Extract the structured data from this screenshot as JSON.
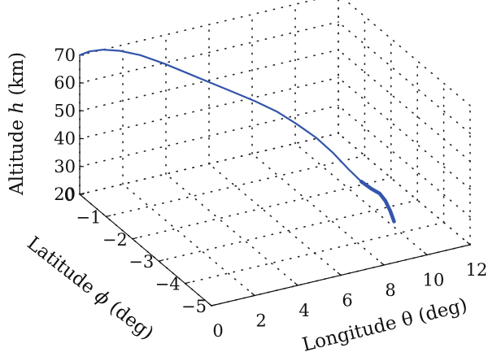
{
  "chart_data": {
    "type": "line",
    "projection": "3d",
    "grid": true,
    "axes": {
      "x": {
        "label": "Longitude θ (deg)",
        "range": [
          0,
          12
        ],
        "ticks": [
          0,
          2,
          4,
          6,
          8,
          10,
          12
        ]
      },
      "y": {
        "label": "Latitude ϕ (deg)",
        "range": [
          -5,
          0
        ],
        "ticks": [
          0,
          -1,
          -2,
          -3,
          -4,
          -5
        ]
      },
      "z": {
        "label": "Altitude h (km)",
        "range": [
          20,
          70
        ],
        "ticks": [
          20,
          30,
          40,
          50,
          60,
          70
        ]
      }
    },
    "axis_label_parts": {
      "z": [
        "Altitude ",
        "h",
        " (km)"
      ],
      "y": [
        "Latitude ",
        "ϕ",
        " (deg)"
      ],
      "x": [
        "Longitude ",
        "θ",
        " (deg)"
      ]
    },
    "color": "#3355aa",
    "series": [
      {
        "points": [
          [
            0.0,
            0.0,
            70.0
          ],
          [
            0.4,
            -0.05,
            71.0
          ],
          [
            0.9,
            -0.15,
            71.5
          ],
          [
            1.5,
            -0.3,
            71.2
          ],
          [
            2.2,
            -0.5,
            70.0
          ],
          [
            3.0,
            -0.75,
            67.5
          ],
          [
            3.8,
            -1.0,
            64.5
          ],
          [
            4.6,
            -1.25,
            61.5
          ],
          [
            5.3,
            -1.5,
            59.0
          ],
          [
            6.0,
            -1.75,
            56.5
          ],
          [
            6.7,
            -2.0,
            53.5
          ],
          [
            7.3,
            -2.25,
            50.0
          ],
          [
            7.9,
            -2.5,
            46.0
          ],
          [
            8.4,
            -2.75,
            41.5
          ],
          [
            8.8,
            -3.0,
            37.0
          ],
          [
            9.15,
            -3.2,
            33.5
          ],
          [
            9.45,
            -3.35,
            31.5
          ],
          [
            9.7,
            -3.45,
            30.2
          ],
          [
            9.85,
            -3.55,
            28.0
          ],
          [
            9.95,
            -3.65,
            25.0
          ],
          [
            10.0,
            -3.75,
            22.0
          ]
        ]
      }
    ]
  }
}
